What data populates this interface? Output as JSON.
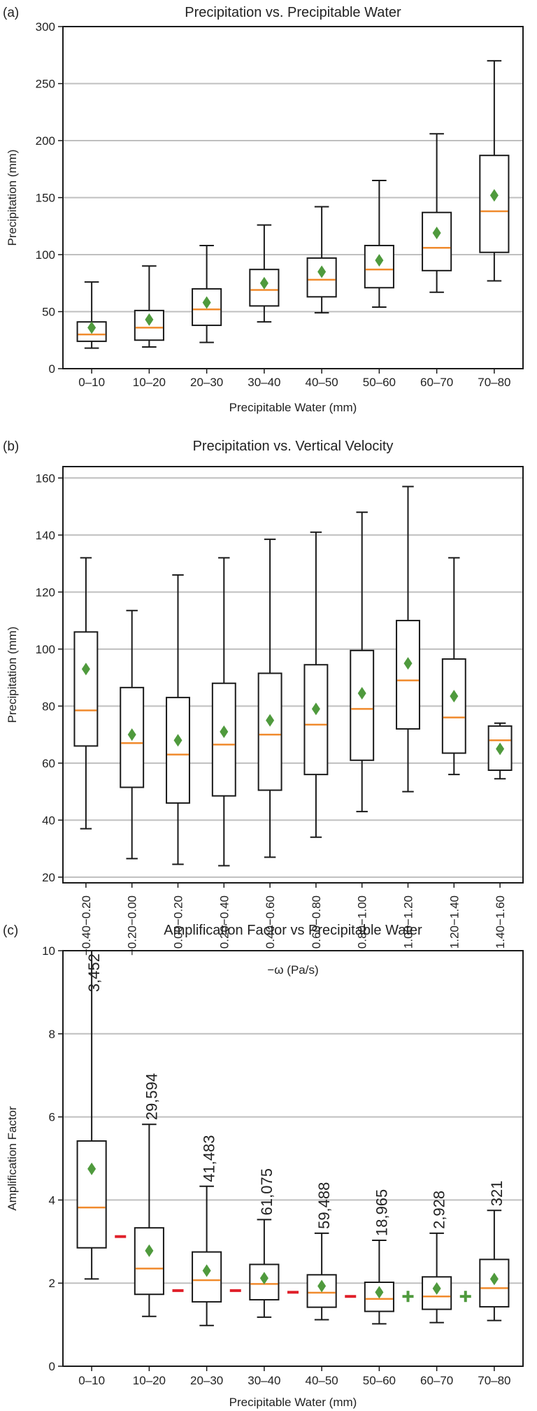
{
  "colors": {
    "box": "#1a1a1a",
    "median": "#f08a2c",
    "mean": "#4f9a3d",
    "grid": "#bfbfbf",
    "decrease": "#e0202a",
    "increase": "#4f9a3d"
  },
  "chart_data": [
    {
      "panel": "(a)",
      "type": "box",
      "title": "Precipitation vs. Precipitable Water",
      "xlabel": "Precipitable Water (mm)",
      "ylabel": "Precipitation (mm)",
      "ylim": [
        0,
        300
      ],
      "yticks": [
        0,
        50,
        100,
        150,
        200,
        250,
        300
      ],
      "grid": "horizontal",
      "categories": [
        "0–10",
        "10–20",
        "20–30",
        "30–40",
        "40–50",
        "50–60",
        "60–70",
        "70–80"
      ],
      "boxes": [
        {
          "whisker_low": 18,
          "q1": 24,
          "median": 30,
          "q3": 41,
          "whisker_high": 76,
          "mean": 36
        },
        {
          "whisker_low": 19,
          "q1": 25,
          "median": 36,
          "q3": 51,
          "whisker_high": 90,
          "mean": 43
        },
        {
          "whisker_low": 23,
          "q1": 38,
          "median": 52,
          "q3": 70,
          "whisker_high": 108,
          "mean": 58
        },
        {
          "whisker_low": 41,
          "q1": 55,
          "median": 69,
          "q3": 87,
          "whisker_high": 126,
          "mean": 75
        },
        {
          "whisker_low": 49,
          "q1": 63,
          "median": 78,
          "q3": 97,
          "whisker_high": 142,
          "mean": 85
        },
        {
          "whisker_low": 54,
          "q1": 71,
          "median": 87,
          "q3": 108,
          "whisker_high": 165,
          "mean": 95
        },
        {
          "whisker_low": 67,
          "q1": 86,
          "median": 106,
          "q3": 137,
          "whisker_high": 206,
          "mean": 119
        },
        {
          "whisker_low": 77,
          "q1": 102,
          "median": 138,
          "q3": 187,
          "whisker_high": 270,
          "mean": 152
        }
      ]
    },
    {
      "panel": "(b)",
      "type": "box",
      "title": "Precipitation vs. Vertical Velocity",
      "xlabel": "−ω (Pa/s)",
      "ylabel": "Precipitation (mm)",
      "ylim": [
        18,
        164
      ],
      "yticks": [
        20,
        40,
        60,
        80,
        100,
        120,
        140,
        160
      ],
      "grid": "horizontal",
      "categories": [
        "−0.40−0.20",
        "−0.20−0.00",
        "0.00−0.20",
        "0.20−0.40",
        "0.40−0.60",
        "0.60−0.80",
        "0.80−1.00",
        "1.00−1.20",
        "1.20−1.40",
        "1.40−1.60"
      ],
      "boxes": [
        {
          "whisker_low": 37,
          "q1": 66,
          "median": 78.5,
          "q3": 106,
          "whisker_high": 132,
          "mean": 93
        },
        {
          "whisker_low": 26.5,
          "q1": 51.5,
          "median": 67,
          "q3": 86.5,
          "whisker_high": 113.5,
          "mean": 70
        },
        {
          "whisker_low": 24.5,
          "q1": 46,
          "median": 63,
          "q3": 83,
          "whisker_high": 126,
          "mean": 68
        },
        {
          "whisker_low": 24,
          "q1": 48.5,
          "median": 66.5,
          "q3": 88,
          "whisker_high": 132,
          "mean": 71
        },
        {
          "whisker_low": 27,
          "q1": 50.5,
          "median": 70,
          "q3": 91.5,
          "whisker_high": 138.5,
          "mean": 75
        },
        {
          "whisker_low": 34,
          "q1": 56,
          "median": 73.5,
          "q3": 94.5,
          "whisker_high": 141,
          "mean": 79
        },
        {
          "whisker_low": 43,
          "q1": 61,
          "median": 79,
          "q3": 99.5,
          "whisker_high": 148,
          "mean": 84.5
        },
        {
          "whisker_low": 50,
          "q1": 72,
          "median": 89,
          "q3": 110,
          "whisker_high": 157,
          "mean": 95
        },
        {
          "whisker_low": 56,
          "q1": 63.5,
          "median": 76,
          "q3": 96.5,
          "whisker_high": 132,
          "mean": 83.5
        },
        {
          "whisker_low": 54.5,
          "q1": 57.5,
          "median": 68,
          "q3": 73,
          "whisker_high": 74,
          "mean": 65
        }
      ]
    },
    {
      "panel": "(c)",
      "type": "box",
      "title": "Amplification Factor vs Precipitable Water",
      "xlabel": "Precipitable Water (mm)",
      "ylabel": "Amplification Factor",
      "ylim": [
        0,
        10
      ],
      "yticks": [
        0,
        2,
        4,
        6,
        8,
        10
      ],
      "grid": "horizontal",
      "categories": [
        "0–10",
        "10–20",
        "20–30",
        "30–40",
        "40–50",
        "50–60",
        "60–70",
        "70–80"
      ],
      "counts": [
        "3,452",
        "29,594",
        "41,483",
        "61,075",
        "59,488",
        "18,965",
        "2,928",
        "321"
      ],
      "boxes": [
        {
          "whisker_low": 2.1,
          "q1": 2.85,
          "median": 3.82,
          "q3": 5.42,
          "whisker_high": 10,
          "mean": 4.75
        },
        {
          "whisker_low": 1.2,
          "q1": 1.73,
          "median": 2.35,
          "q3": 3.33,
          "whisker_high": 5.82,
          "mean": 2.78
        },
        {
          "whisker_low": 0.98,
          "q1": 1.55,
          "median": 2.07,
          "q3": 2.75,
          "whisker_high": 4.33,
          "mean": 2.3
        },
        {
          "whisker_low": 1.18,
          "q1": 1.6,
          "median": 1.98,
          "q3": 2.45,
          "whisker_high": 3.53,
          "mean": 2.12
        },
        {
          "whisker_low": 1.12,
          "q1": 1.42,
          "median": 1.77,
          "q3": 2.2,
          "whisker_high": 3.2,
          "mean": 1.93
        },
        {
          "whisker_low": 1.02,
          "q1": 1.32,
          "median": 1.62,
          "q3": 2.02,
          "whisker_high": 3.03,
          "mean": 1.78
        },
        {
          "whisker_low": 1.05,
          "q1": 1.37,
          "median": 1.68,
          "q3": 2.15,
          "whisker_high": 3.2,
          "mean": 1.87
        },
        {
          "whisker_low": 1.1,
          "q1": 1.43,
          "median": 1.88,
          "q3": 2.57,
          "whisker_high": 3.75,
          "mean": 2.1
        }
      ],
      "between_markers": [
        {
          "between": [
            "0–10",
            "10–20"
          ],
          "sign": "−",
          "y": 3.12
        },
        {
          "between": [
            "10–20",
            "20–30"
          ],
          "sign": "−",
          "y": 1.82
        },
        {
          "between": [
            "20–30",
            "30–40"
          ],
          "sign": "−",
          "y": 1.82
        },
        {
          "between": [
            "30–40",
            "40–50"
          ],
          "sign": "−",
          "y": 1.78
        },
        {
          "between": [
            "40–50",
            "50–60"
          ],
          "sign": "−",
          "y": 1.68
        },
        {
          "between": [
            "50–60",
            "60–70"
          ],
          "sign": "+",
          "y": 1.68
        },
        {
          "between": [
            "60–70",
            "70–80"
          ],
          "sign": "+",
          "y": 1.68
        }
      ]
    }
  ]
}
